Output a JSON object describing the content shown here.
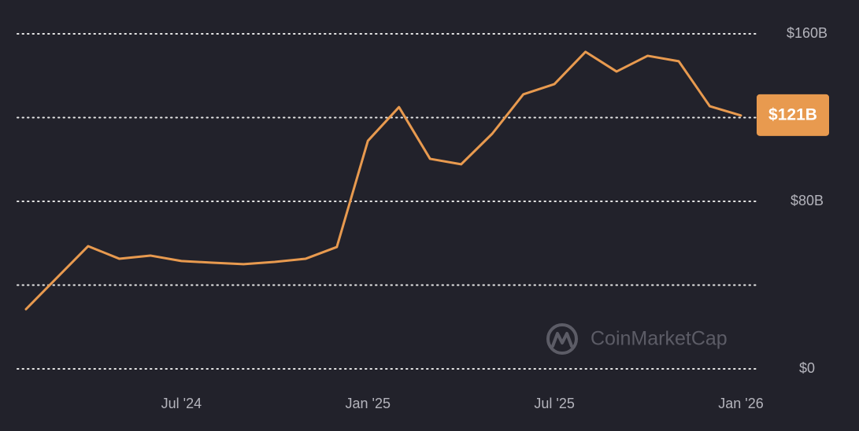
{
  "chart_data": {
    "type": "line",
    "x": [
      "2024-02",
      "2024-03",
      "2024-04",
      "2024-05",
      "2024-06",
      "2024-07",
      "2024-08",
      "2024-09",
      "2024-10",
      "2024-11",
      "2024-12",
      "2025-01",
      "2025-02",
      "2025-03",
      "2025-04",
      "2025-05",
      "2025-06",
      "2025-07",
      "2025-08",
      "2025-09",
      "2025-10",
      "2025-11",
      "2025-12",
      "2026-01"
    ],
    "series": [
      {
        "color": "#e89a4f",
        "values": [
          28.5,
          43.6,
          58.6,
          52.6,
          54.1,
          51.5,
          50.7,
          50.0,
          51.1,
          52.6,
          58.2,
          108.9,
          125.0,
          100.3,
          97.7,
          112.3,
          131.1,
          136.0,
          151.4,
          142.0,
          149.5,
          146.9,
          125.4,
          121
        ]
      }
    ],
    "current_label": "$121B",
    "xlim": [
      "2024-02",
      "2026-01"
    ],
    "xticks": [
      {
        "value": "2024-07",
        "label": "Jul '24"
      },
      {
        "value": "2025-01",
        "label": "Jan '25"
      },
      {
        "value": "2025-07",
        "label": "Jul '25"
      },
      {
        "value": "2026-01",
        "label": "Jan '26"
      }
    ],
    "ylim": [
      0,
      160
    ],
    "yticks": [
      {
        "value": 0,
        "label": "$0"
      },
      {
        "value": 80,
        "label": "$80B"
      },
      {
        "value": 160,
        "label": "$160B"
      }
    ],
    "ygrid": [
      0,
      40,
      80,
      120,
      160
    ],
    "grid": true,
    "watermark": "CoinMarketCap"
  }
}
